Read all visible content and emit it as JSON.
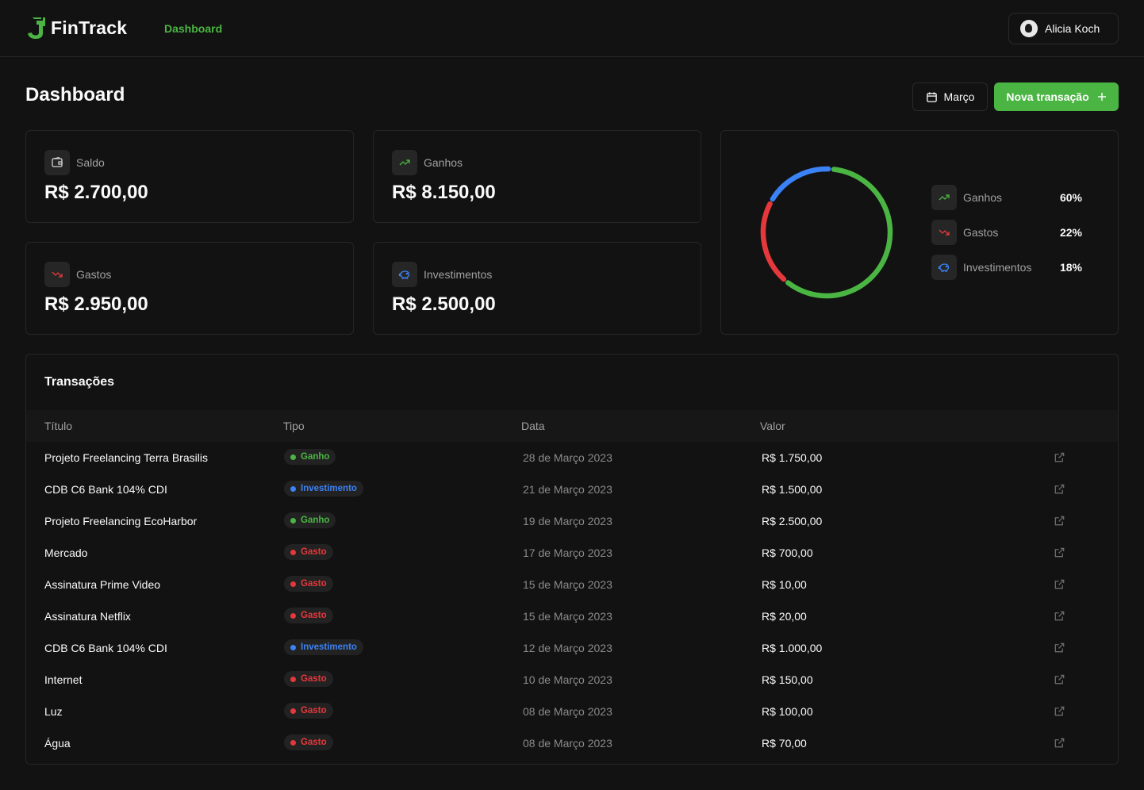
{
  "brand": {
    "name": "FinTrack"
  },
  "nav": {
    "dashboard": "Dashboard"
  },
  "user": {
    "name": "Alicia Koch"
  },
  "page": {
    "title": "Dashboard",
    "month": "Março",
    "new_button": "Nova transação"
  },
  "colors": {
    "accent": "#4bb543",
    "income": "#4bb543",
    "expense": "#e5383b",
    "investment": "#3b82f6"
  },
  "stats": {
    "saldo": {
      "label": "Saldo",
      "value": "R$ 2.700,00",
      "icon": "wallet-icon"
    },
    "ganhos": {
      "label": "Ganhos",
      "value": "R$ 8.150,00",
      "icon": "trending-up-icon"
    },
    "gastos": {
      "label": "Gastos",
      "value": "R$ 2.950,00",
      "icon": "trending-down-icon"
    },
    "investimentos": {
      "label": "Investimentos",
      "value": "R$ 2.500,00",
      "icon": "piggy-bank-icon"
    }
  },
  "chart_data": {
    "type": "pie",
    "categories": [
      "Ganhos",
      "Gastos",
      "Investimentos"
    ],
    "values": [
      60,
      22,
      18
    ],
    "labels": [
      "60%",
      "22%",
      "18%"
    ],
    "colors": [
      "#4bb543",
      "#e5383b",
      "#3b82f6"
    ],
    "legend": "right"
  },
  "transactions": {
    "title": "Transações",
    "columns": [
      "Título",
      "Tipo",
      "Data",
      "Valor"
    ],
    "rows": [
      {
        "title": "Projeto Freelancing Terra Brasilis",
        "type": "Ganho",
        "kind": "income",
        "date": "28 de Março 2023",
        "value": "R$ 1.750,00"
      },
      {
        "title": "CDB C6 Bank 104% CDI",
        "type": "Investimento",
        "kind": "investment",
        "date": "21 de Março 2023",
        "value": "R$ 1.500,00"
      },
      {
        "title": "Projeto Freelancing EcoHarbor",
        "type": "Ganho",
        "kind": "income",
        "date": "19 de Março 2023",
        "value": "R$ 2.500,00"
      },
      {
        "title": "Mercado",
        "type": "Gasto",
        "kind": "expense",
        "date": "17 de Março 2023",
        "value": "R$ 700,00"
      },
      {
        "title": "Assinatura  Prime Video",
        "type": "Gasto",
        "kind": "expense",
        "date": "15 de Março 2023",
        "value": "R$ 10,00"
      },
      {
        "title": "Assinatura  Netflix",
        "type": "Gasto",
        "kind": "expense",
        "date": "15 de Março 2023",
        "value": "R$ 20,00"
      },
      {
        "title": "CDB C6 Bank 104% CDI",
        "type": "Investimento",
        "kind": "investment",
        "date": "12 de Março 2023",
        "value": "R$ 1.000,00"
      },
      {
        "title": "Internet",
        "type": "Gasto",
        "kind": "expense",
        "date": "10 de Março 2023",
        "value": "R$ 150,00"
      },
      {
        "title": "Luz",
        "type": "Gasto",
        "kind": "expense",
        "date": "08 de Março 2023",
        "value": "R$ 100,00"
      },
      {
        "title": "Água",
        "type": "Gasto",
        "kind": "expense",
        "date": "08 de Março 2023",
        "value": "R$ 70,00"
      }
    ]
  }
}
